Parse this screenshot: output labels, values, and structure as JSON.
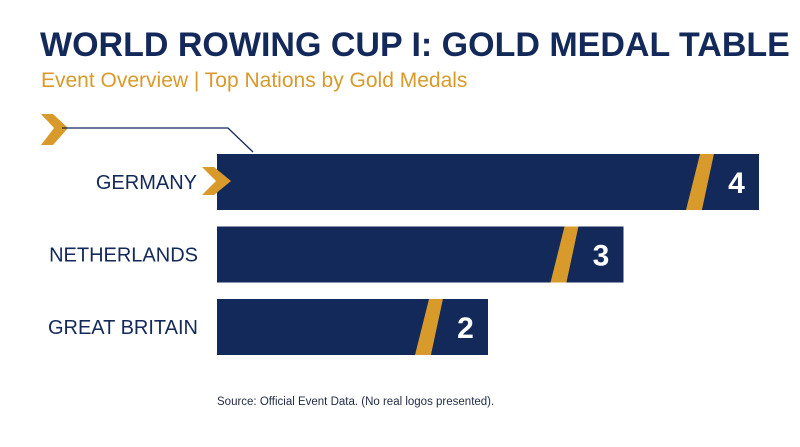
{
  "header": {
    "title": "WORLD ROWING CUP I: GOLD MEDAL TABLE",
    "subtitle": "Event Overview | Top Nations by Gold Medals"
  },
  "footer": {
    "source": "Source: Official Event Data. (No real logos presented)."
  },
  "colors": {
    "bar": "#13295a",
    "accent": "#d89a2a",
    "accent_dark": "#b87a10"
  },
  "chart_data": {
    "type": "bar",
    "orientation": "horizontal",
    "categories": [
      "GERMANY",
      "NETHERLANDS",
      "GREAT BRITAIN"
    ],
    "values": [
      4,
      3,
      2
    ],
    "xlim": [
      0,
      4
    ],
    "grid": false,
    "highlight": "GERMANY"
  }
}
